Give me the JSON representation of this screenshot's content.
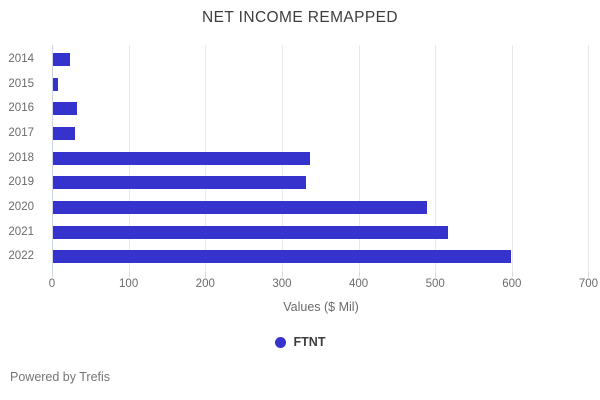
{
  "title": "NET INCOME REMAPPED",
  "chart_data": {
    "type": "bar",
    "orientation": "horizontal",
    "title": "NET INCOME REMAPPED",
    "categories": [
      "2014",
      "2015",
      "2016",
      "2017",
      "2018",
      "2019",
      "2020",
      "2021",
      "2022"
    ],
    "series": [
      {
        "name": "FTNT",
        "values": [
          24,
          8,
          32,
          30,
          336,
          332,
          489,
          517,
          599
        ]
      }
    ],
    "xlabel": "Values ($ Mil)",
    "ylabel": "",
    "xticks": [
      0,
      100,
      200,
      300,
      400,
      500,
      600,
      700
    ],
    "xlim": [
      0,
      702
    ],
    "grid": true,
    "legend_position": "bottom",
    "bar_color": "#3533cb",
    "gridline_color": "#e9e9e9",
    "zeroline_color": "#ccd6e4"
  },
  "legend": {
    "items": [
      {
        "label": "FTNT",
        "color": "#3533cb"
      }
    ]
  },
  "footer": {
    "text": "Powered by Trefis"
  }
}
